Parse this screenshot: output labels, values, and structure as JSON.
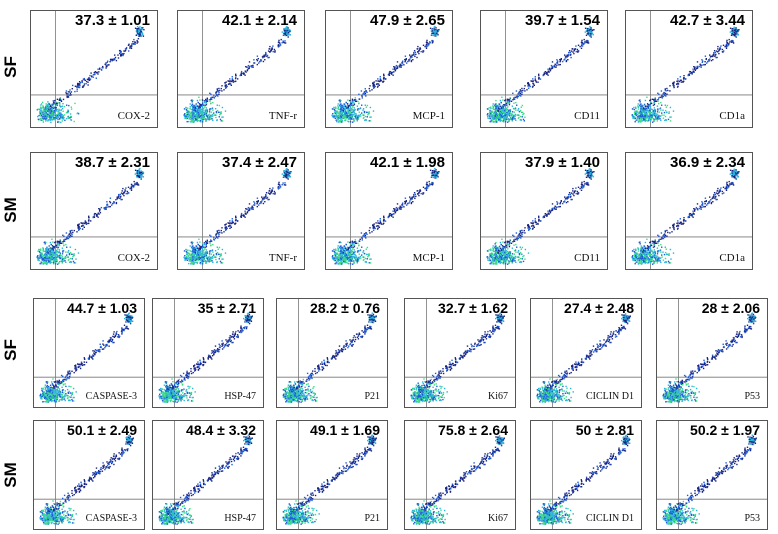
{
  "row_labels": [
    "SF",
    "SM",
    "SF",
    "SM"
  ],
  "rows": [
    {
      "panels": [
        {
          "marker": "COX-2",
          "value": "37.3  ± 1.01"
        },
        {
          "marker": "TNF-r",
          "value": "42.1  ± 2.14"
        },
        {
          "marker": "MCP-1",
          "value": "47.9  ± 2.65"
        },
        {
          "marker": "CD11",
          "value": "39.7  ± 1.54"
        },
        {
          "marker": "CD1a",
          "value": "42.7  ± 3.44"
        }
      ]
    },
    {
      "panels": [
        {
          "marker": "COX-2",
          "value": "38.7  ± 2.31"
        },
        {
          "marker": "TNF-r",
          "value": "37.4  ± 2.47"
        },
        {
          "marker": "MCP-1",
          "value": "42.1  ± 1.98"
        },
        {
          "marker": "CD11",
          "value": "37.9  ± 1.40"
        },
        {
          "marker": "CD1a",
          "value": "36.9  ± 2.34"
        }
      ]
    },
    {
      "panels": [
        {
          "marker": "CASPASE-3",
          "value": "44.7  ± 1.03"
        },
        {
          "marker": "HSP-47",
          "value": "35  ± 2.71"
        },
        {
          "marker": "P21",
          "value": "28.2  ± 0.76"
        },
        {
          "marker": "Ki67",
          "value": "32.7  ± 1.62"
        },
        {
          "marker": "CICLIN  D1",
          "value": "27.4  ± 2.48"
        },
        {
          "marker": "P53",
          "value": "28  ± 2.06"
        }
      ]
    },
    {
      "panels": [
        {
          "marker": "CASPASE-3",
          "value": "50.1  ± 2.49"
        },
        {
          "marker": "HSP-47",
          "value": "48.4 ± 3.32"
        },
        {
          "marker": "P21",
          "value": "49.1  ± 1.69"
        },
        {
          "marker": "Ki67",
          "value": "75.8  ± 2.64"
        },
        {
          "marker": "CICLIN  D1",
          "value": "50 ± 2.81"
        },
        {
          "marker": "P53",
          "value": "50.2  ± 1.97"
        }
      ]
    }
  ],
  "colors": {
    "dots_dark": "#1a237e",
    "dots_mid": "#1e5bd6",
    "dots_light": "#2bb3e0",
    "dots_core": "#3ddc84",
    "frame": "#555555",
    "gate": "#777777"
  }
}
